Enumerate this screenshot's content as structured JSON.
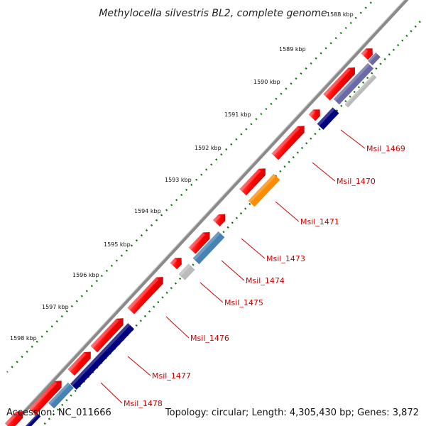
{
  "title": "Methylocella silvestris BL2, complete genome",
  "accession_text": "Accession: NC_011666",
  "summary_text": "Topology: circular; Length: 4,305,430 bp; Genes: 3,872",
  "tick_labels": [
    "1588 kbp",
    "1589 kbp",
    "1590 kbp",
    "1591 kbp",
    "1592 kbp",
    "1593 kbp",
    "1594 kbp",
    "1595 kbp",
    "1596 kbp",
    "1597 kbp",
    "1598 kbp"
  ],
  "gene_labels": [
    "Msil_1469",
    "Msil_1470",
    "Msil_1471",
    "Msil_1473",
    "Msil_1474",
    "Msil_1475",
    "Msil_1476",
    "Msil_1477",
    "Msil_1478"
  ],
  "colors": {
    "cds": "#ff0000",
    "dark_blue": "#00007f",
    "steel_blue": "#4682b4",
    "orange": "#ff8c00",
    "gray": "#bbbbbb",
    "backbone": "#888888",
    "tick_dots": "#007700",
    "label": "#cc0000"
  }
}
